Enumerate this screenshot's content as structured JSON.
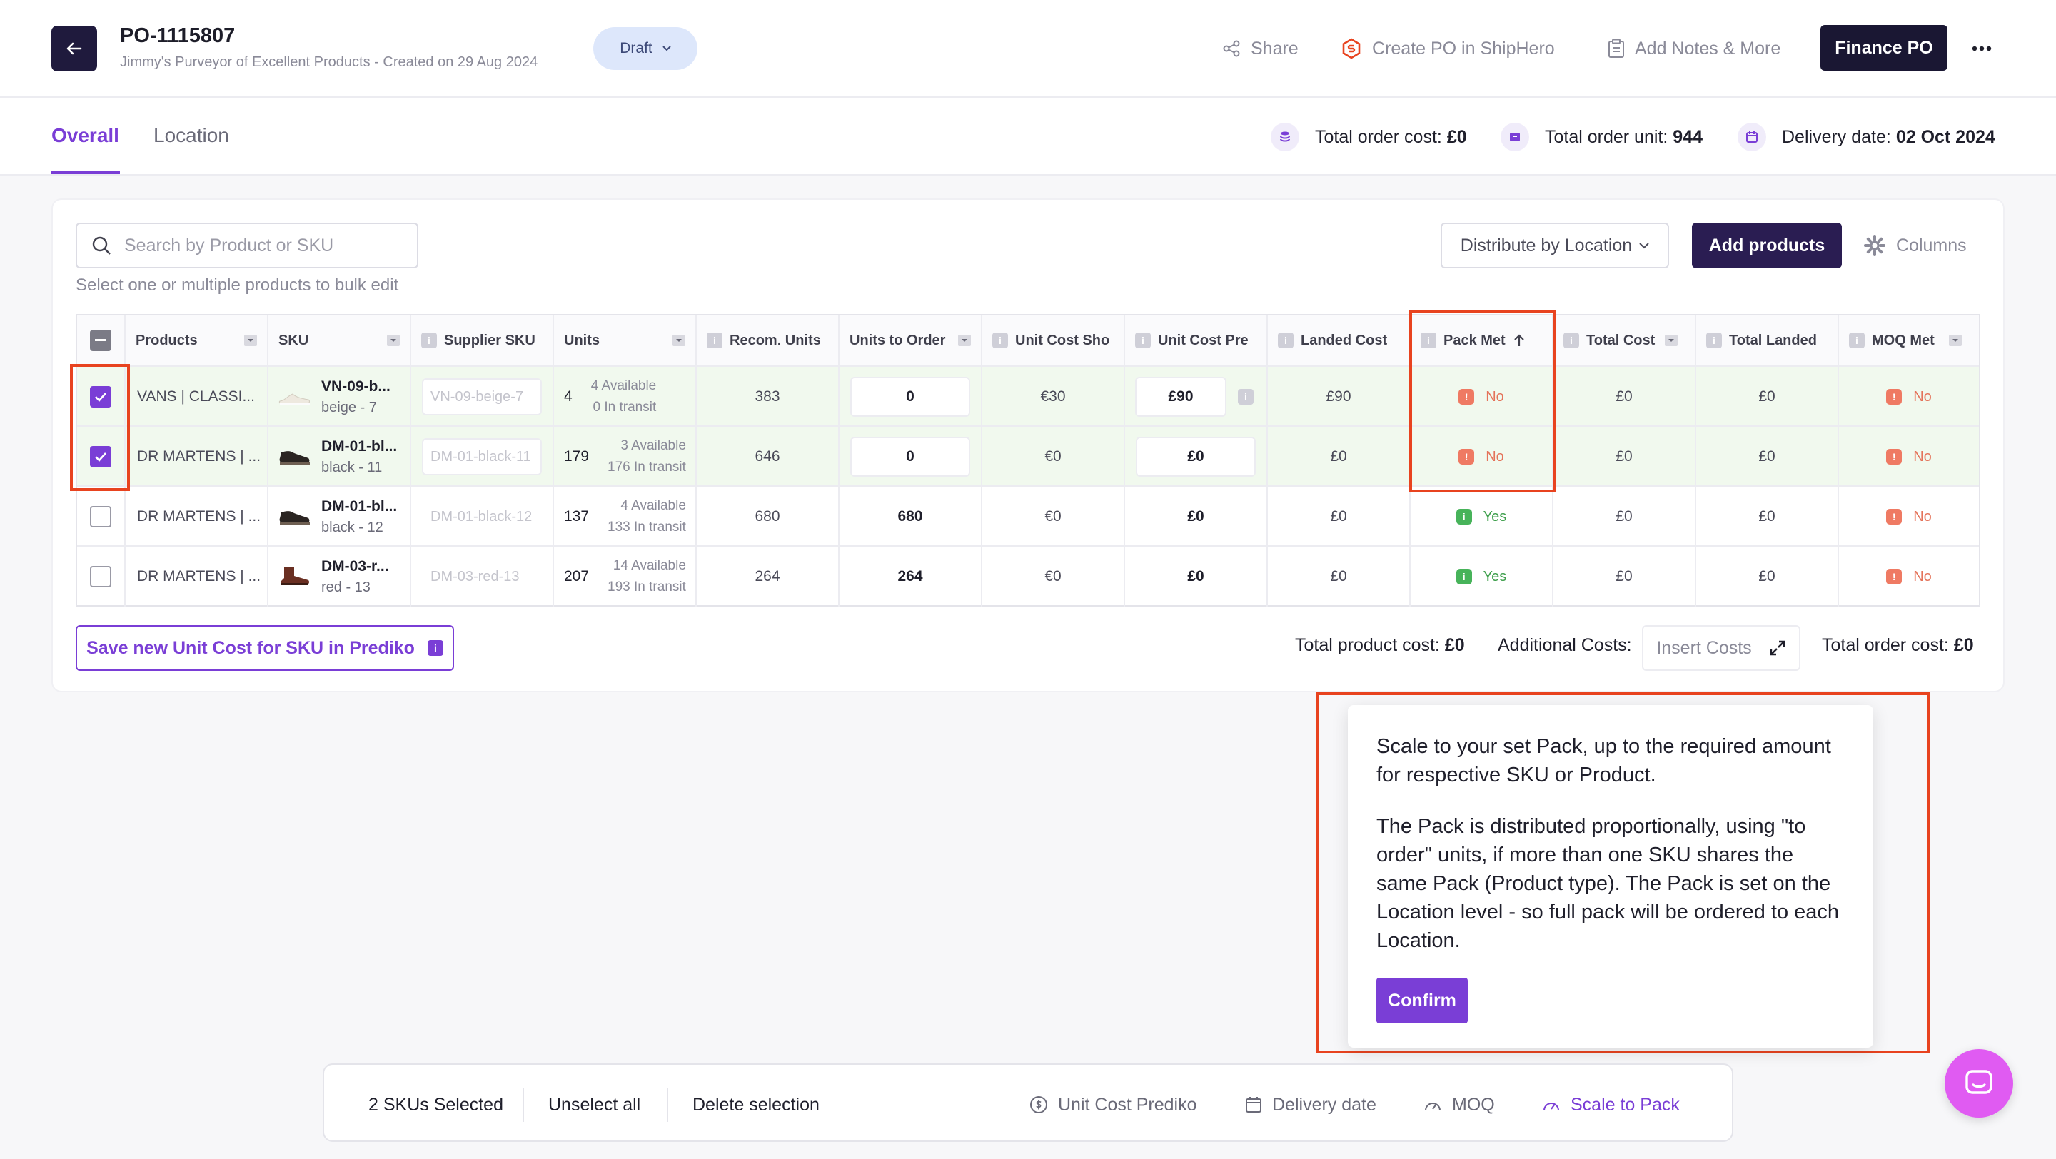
{
  "header": {
    "po_number": "PO-1115807",
    "supplier_line": "Jimmy's Purveyor of Excellent Products  -  Created on 29 Aug 2024",
    "status": "Draft",
    "actions": {
      "share": "Share",
      "create_shiphero": "Create PO in ShipHero",
      "add_notes": "Add Notes & More",
      "finance": "Finance PO"
    }
  },
  "tabs": {
    "overall": "Overall",
    "location": "Location"
  },
  "summary": {
    "cost_label": "Total order cost:",
    "cost_value": "£0",
    "unit_label": "Total order unit:",
    "unit_value": "944",
    "delivery_label": "Delivery date:",
    "delivery_value": "02 Oct 2024"
  },
  "toolbar": {
    "search_placeholder": "Search by Product or SKU",
    "bulk_hint": "Select one or multiple products to bulk edit",
    "distribute": "Distribute by Location",
    "add_products": "Add products",
    "columns": "Columns"
  },
  "table": {
    "columns": [
      "Products",
      "SKU",
      "Supplier SKU",
      "Units",
      "Recom. Units",
      "Units to Order",
      "Unit Cost Sho",
      "Unit Cost Pre",
      "Landed Cost",
      "Pack Met",
      "Total Cost",
      "Total Landed",
      "MOQ Met"
    ],
    "rows": [
      {
        "product": "VANS | CLASSI...",
        "sku": "VN-09-b...",
        "variant": "beige - 7",
        "supplier_sku": "VN-09-beige-7",
        "units": "4",
        "available": "4 Available",
        "transit": "0 In transit",
        "recom": "383",
        "to_order": "0",
        "cost_sho": "€30",
        "cost_pre": "£90",
        "landed": "£90",
        "pack_met": "No",
        "total_cost": "£0",
        "total_landed": "£0",
        "moq_met": "No"
      },
      {
        "product": "DR MARTENS | ...",
        "sku": "DM-01-bl...",
        "variant": "black - 11",
        "supplier_sku": "DM-01-black-11",
        "units": "179",
        "available": "3 Available",
        "transit": "176 In transit",
        "recom": "646",
        "to_order": "0",
        "cost_sho": "€0",
        "cost_pre": "£0",
        "landed": "£0",
        "pack_met": "No",
        "total_cost": "£0",
        "total_landed": "£0",
        "moq_met": "No"
      },
      {
        "product": "DR MARTENS | ...",
        "sku": "DM-01-bl...",
        "variant": "black - 12",
        "supplier_sku": "DM-01-black-12",
        "units": "137",
        "available": "4 Available",
        "transit": "133 In transit",
        "recom": "680",
        "to_order": "680",
        "cost_sho": "€0",
        "cost_pre": "£0",
        "landed": "£0",
        "pack_met": "Yes",
        "total_cost": "£0",
        "total_landed": "£0",
        "moq_met": "No"
      },
      {
        "product": "DR MARTENS | ...",
        "sku": "DM-03-r...",
        "variant": "red - 13",
        "supplier_sku": "DM-03-red-13",
        "units": "207",
        "available": "14 Available",
        "transit": "193 In transit",
        "recom": "264",
        "to_order": "264",
        "cost_sho": "€0",
        "cost_pre": "£0",
        "landed": "£0",
        "pack_met": "Yes",
        "total_cost": "£0",
        "total_landed": "£0",
        "moq_met": "No"
      }
    ]
  },
  "footer": {
    "save_unit_cost": "Save new Unit Cost for SKU in Prediko",
    "product_cost_label": "Total product cost:",
    "product_cost_value": "£0",
    "additional_label": "Additional Costs:",
    "insert_costs": "Insert Costs",
    "order_cost_label": "Total order cost:",
    "order_cost_value": "£0"
  },
  "tooltip": {
    "para1": "Scale to your set Pack, up to the required amount for respective SKU or Product.",
    "para2": "The Pack is distributed proportionally, using \"to order\" units, if more than one SKU shares the same Pack (Product type). The Pack is set on the Location level - so full pack will be ordered to each Location.",
    "confirm": "Confirm"
  },
  "bulkbar": {
    "selected": "2 SKUs Selected",
    "unselect": "Unselect all",
    "delete": "Delete selection",
    "unit_cost": "Unit Cost Prediko",
    "delivery": "Delivery date",
    "moq": "MOQ",
    "scale": "Scale to Pack"
  },
  "colors": {
    "accent": "#7a3ed6",
    "dark": "#1a1733",
    "annotation": "#e8431f",
    "selected_row": "#f1f9ee"
  }
}
